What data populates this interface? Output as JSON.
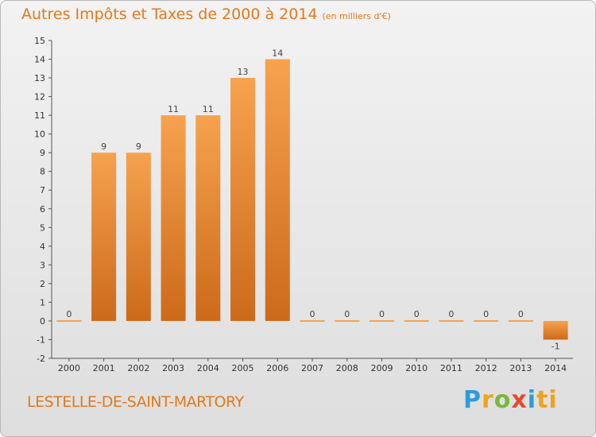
{
  "chart_title": "Autres Impôts et Taxes de 2000 à 2014",
  "unit_label": "(en milliers d'€)",
  "commune": "LESTELLE-DE-SAINT-MARTORY",
  "brand": [
    "P",
    "r",
    "o",
    "x",
    "i",
    "ti"
  ],
  "colors": {
    "title": "#e07a1c",
    "bar_light": "#f6a24e",
    "bar_dark": "#cc6a1a"
  },
  "chart_data": {
    "type": "bar",
    "title": "Autres Impôts et Taxes de 2000 à 2014",
    "categories": [
      "2000",
      "2001",
      "2002",
      "2003",
      "2004",
      "2005",
      "2006",
      "2007",
      "2008",
      "2009",
      "2010",
      "2011",
      "2012",
      "2013",
      "2014"
    ],
    "values": [
      0,
      9,
      9,
      11,
      11,
      13,
      14,
      0,
      0,
      0,
      0,
      0,
      0,
      0,
      -1
    ],
    "data_labels": [
      "0",
      "9",
      "9",
      "11",
      "11",
      "13",
      "14",
      "0",
      "0",
      "0",
      "0",
      "0",
      "0",
      "0",
      "-1"
    ],
    "y_ticks": [
      "-2",
      "-1",
      "0",
      "1",
      "2",
      "3",
      "4",
      "5",
      "6",
      "7",
      "8",
      "9",
      "10",
      "11",
      "12",
      "13",
      "14",
      "15"
    ],
    "ylim": [
      -2,
      15
    ],
    "grid": false,
    "legend": "none"
  }
}
